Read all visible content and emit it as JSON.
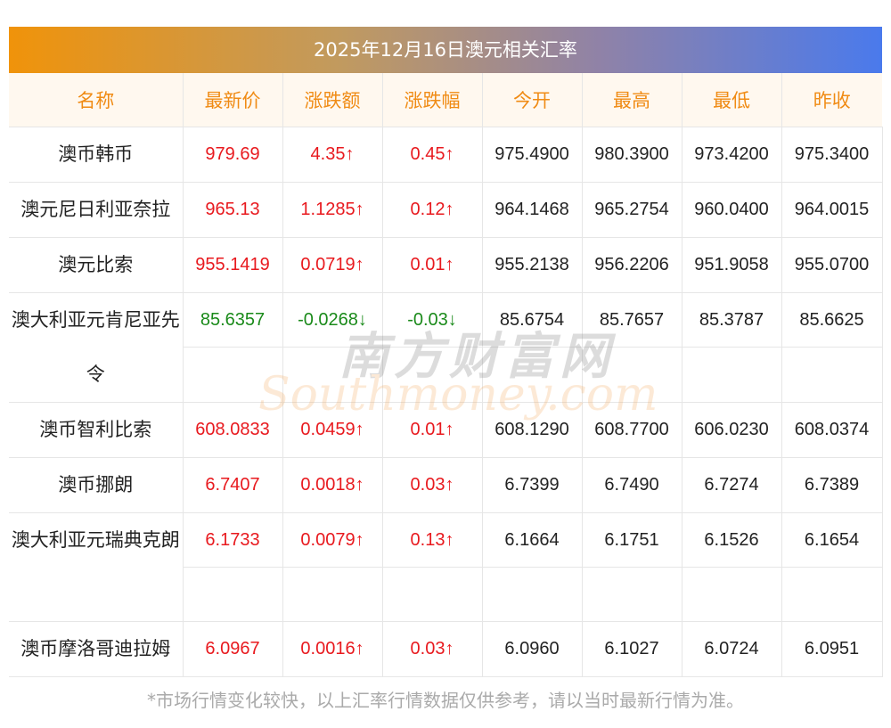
{
  "title": "2025年12月16日澳元相关汇率",
  "headers": [
    "名称",
    "最新价",
    "涨跌额",
    "涨跌幅",
    "今开",
    "最高",
    "最低",
    "昨收"
  ],
  "rows": [
    {
      "name": "澳币韩币",
      "latest": "979.69",
      "change": "4.35↑",
      "pct": "0.45↑",
      "open": "975.4900",
      "high": "980.3900",
      "low": "973.4200",
      "prev": "975.3400",
      "dir": "up"
    },
    {
      "name": "澳元尼日利亚奈拉",
      "latest": "965.13",
      "change": "1.1285↑",
      "pct": "0.12↑",
      "open": "964.1468",
      "high": "965.2754",
      "low": "960.0400",
      "prev": "964.0015",
      "dir": "up"
    },
    {
      "name": "澳元比索",
      "latest": "955.1419",
      "change": "0.0719↑",
      "pct": "0.01↑",
      "open": "955.2138",
      "high": "956.2206",
      "low": "951.9058",
      "prev": "955.0700",
      "dir": "up"
    },
    {
      "name": "澳大利亚元肯尼亚先令",
      "latest": "85.6357",
      "change": "-0.0268↓",
      "pct": "-0.03↓",
      "open": "85.6754",
      "high": "85.7657",
      "low": "85.3787",
      "prev": "85.6625",
      "dir": "down"
    },
    {
      "name": "澳币智利比索",
      "latest": "608.0833",
      "change": "0.0459↑",
      "pct": "0.01↑",
      "open": "608.1290",
      "high": "608.7700",
      "low": "606.0230",
      "prev": "608.0374",
      "dir": "up"
    },
    {
      "name": "澳币挪朗",
      "latest": "6.7407",
      "change": "0.0018↑",
      "pct": "0.03↑",
      "open": "6.7399",
      "high": "6.7490",
      "low": "6.7274",
      "prev": "6.7389",
      "dir": "up"
    },
    {
      "name": "澳大利亚元瑞典克朗",
      "latest": "6.1733",
      "change": "0.0079↑",
      "pct": "0.13↑",
      "open": "6.1664",
      "high": "6.1751",
      "low": "6.1526",
      "prev": "6.1654",
      "dir": "up"
    },
    {
      "name": "澳币摩洛哥迪拉姆",
      "latest": "6.0967",
      "change": "0.0016↑",
      "pct": "0.03↑",
      "open": "6.0960",
      "high": "6.1027",
      "low": "6.0724",
      "prev": "6.0951",
      "dir": "up"
    }
  ],
  "watermark": {
    "cn": "南方财富网",
    "en": "Southmoney.com"
  },
  "footnote": "*市场行情变化较快，以上汇率行情数据仅供参考，请以当时最新行情为准。",
  "colors": {
    "up": "#e8191e",
    "down": "#1a8a1a",
    "header_text": "#f08b14",
    "header_bg": "#fff8ef"
  }
}
